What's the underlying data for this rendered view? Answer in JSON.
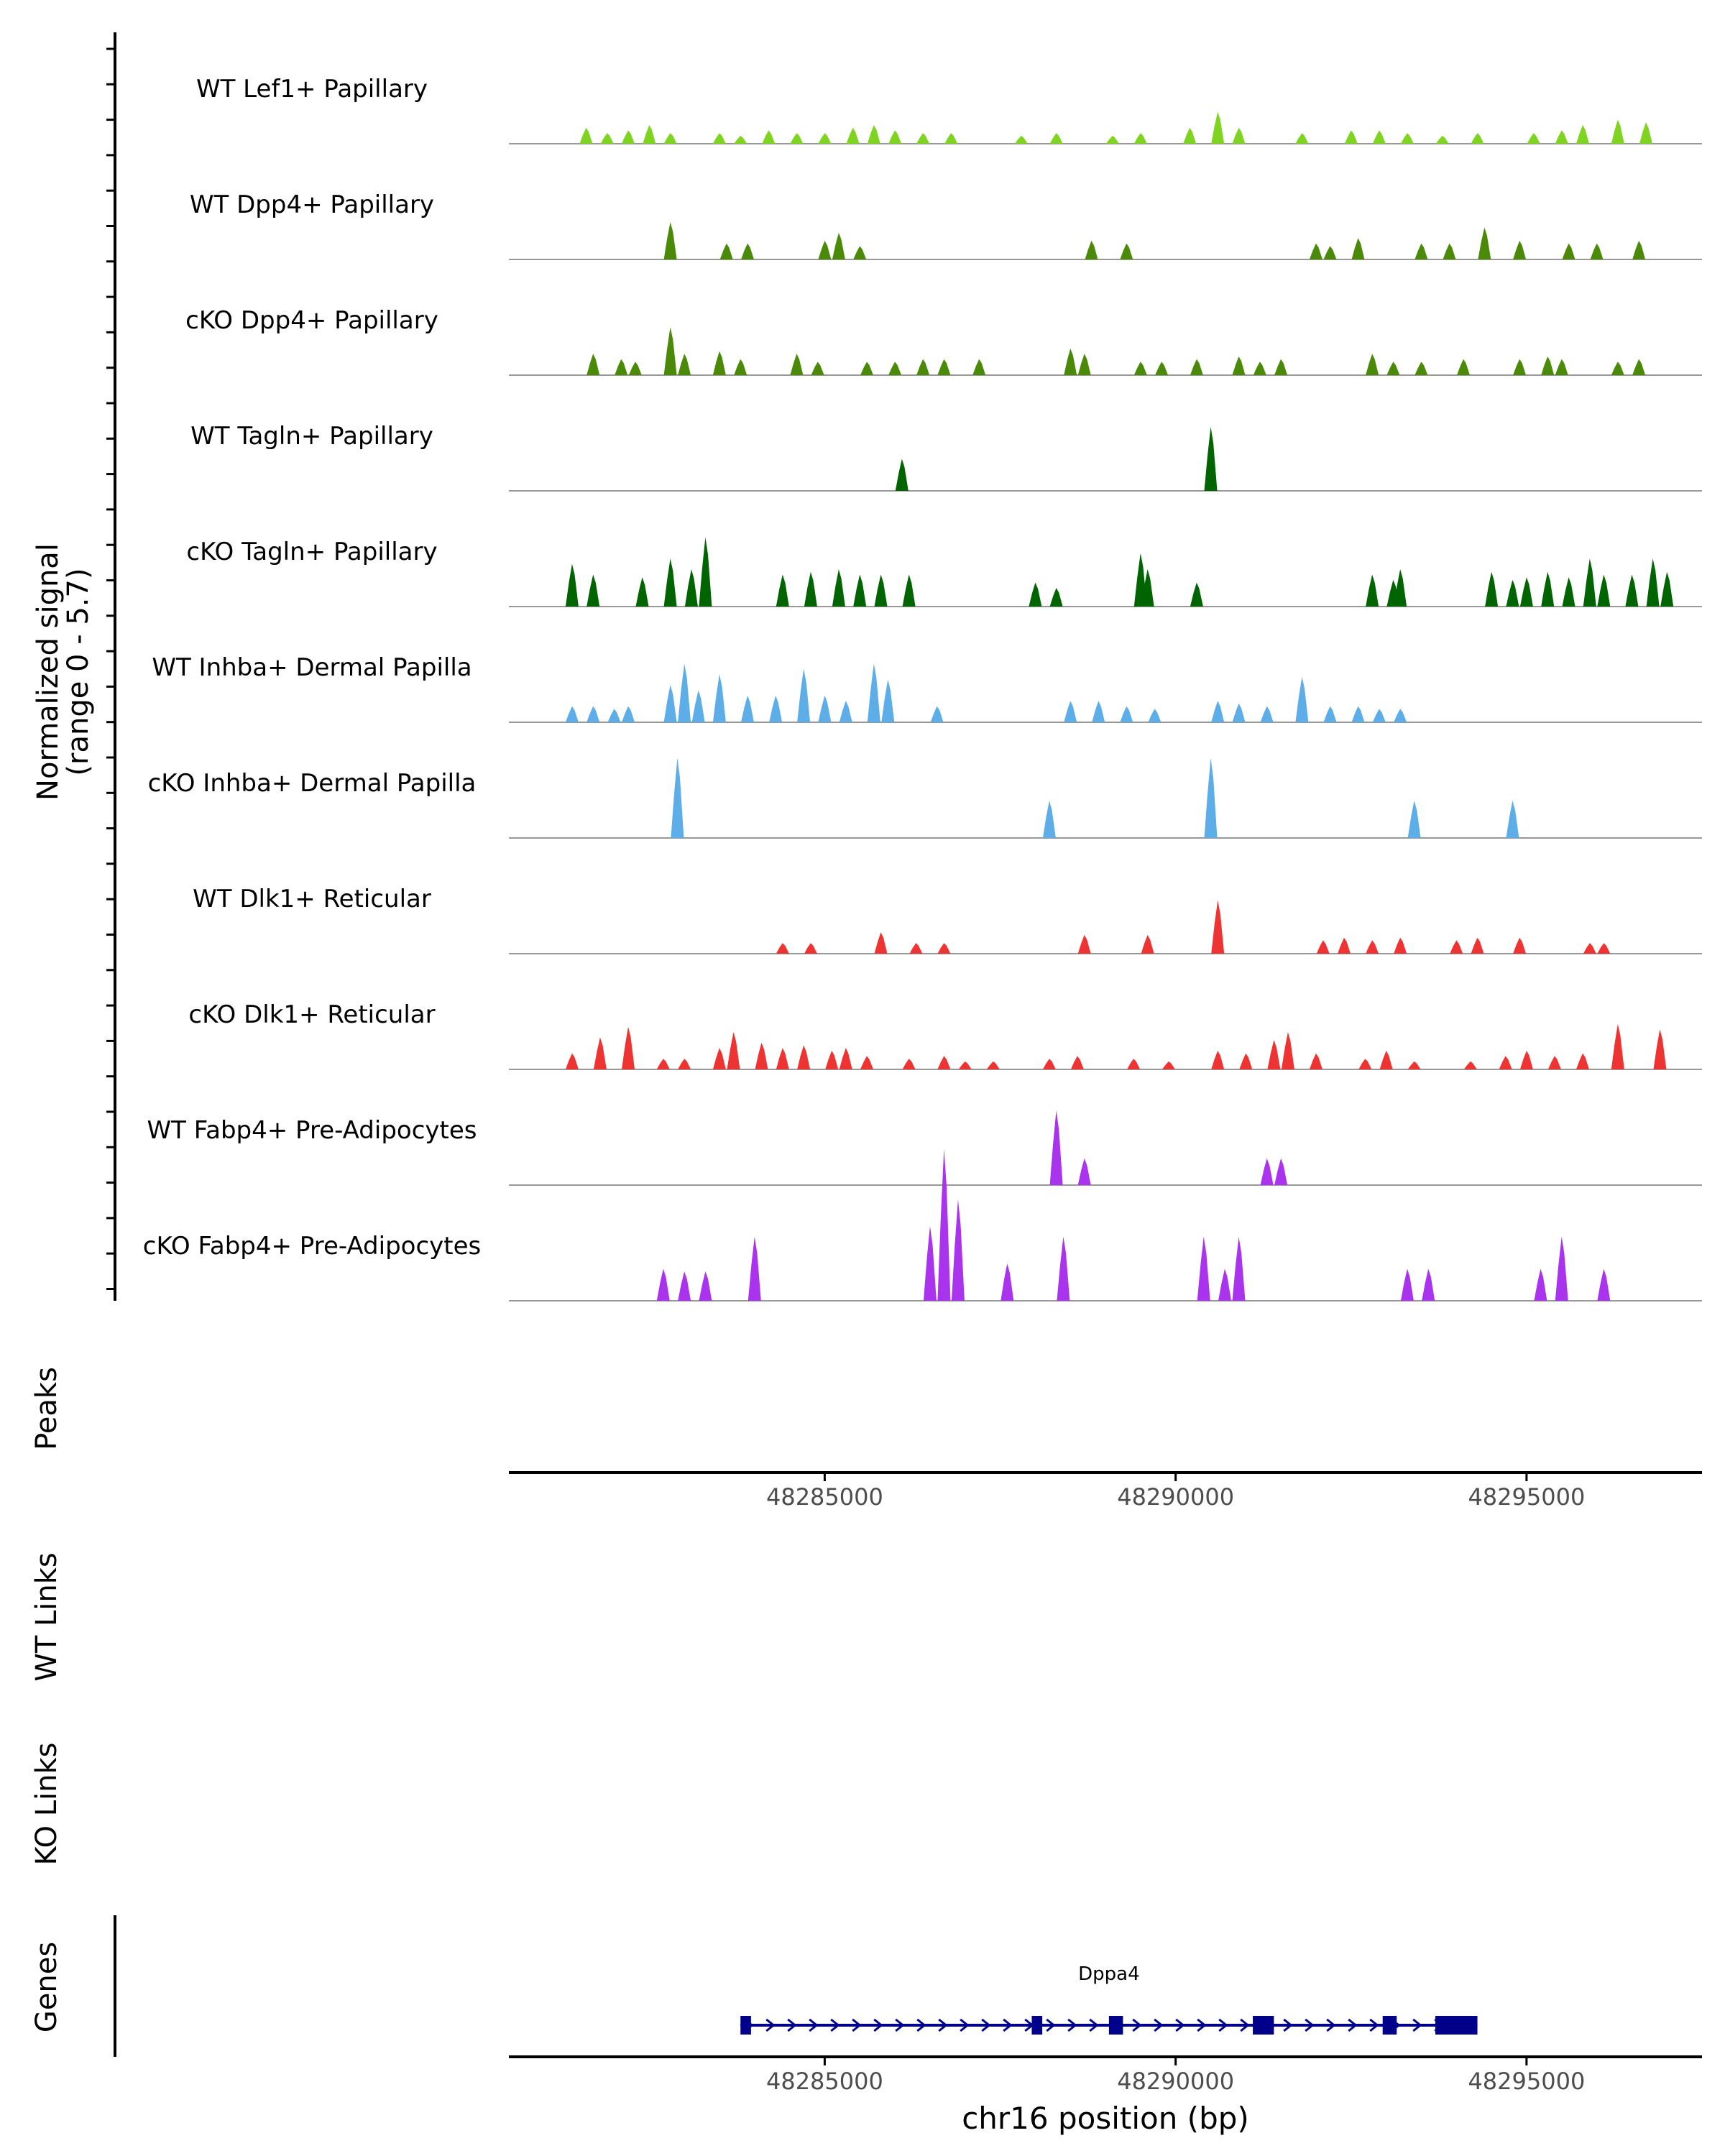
{
  "chart_data": {
    "type": "area",
    "title": "",
    "chromosome": "chr16",
    "xlabel": "chr16 position (bp)",
    "ylabel_line1": "Normalized signal",
    "ylabel_line2": "(range 0 - 5.7)",
    "ylim": [
      0,
      5.7
    ],
    "xlim": [
      48280500,
      48297500
    ],
    "x_ticks": [
      48285000,
      48290000,
      48295000
    ],
    "x_tick_labels": [
      "48285000",
      "48290000",
      "48295000"
    ],
    "bottom_x_tick_labels": [
      "48285000",
      "48290000",
      "48295000"
    ],
    "section_labels": {
      "peaks": "Peaks",
      "wt_links": "WT Links",
      "ko_links": "KO Links",
      "genes": "Genes"
    },
    "series": [
      {
        "name": "WT Lef1+ Papillary",
        "color": "#7FD321",
        "peaks": [
          [
            48281600,
            0.6
          ],
          [
            48281900,
            0.4
          ],
          [
            48282200,
            0.5
          ],
          [
            48282500,
            0.7
          ],
          [
            48282800,
            0.4
          ],
          [
            48283500,
            0.4
          ],
          [
            48283800,
            0.3
          ],
          [
            48284200,
            0.5
          ],
          [
            48284600,
            0.4
          ],
          [
            48285000,
            0.4
          ],
          [
            48285400,
            0.6
          ],
          [
            48285700,
            0.7
          ],
          [
            48286000,
            0.5
          ],
          [
            48286400,
            0.4
          ],
          [
            48286800,
            0.4
          ],
          [
            48287800,
            0.3
          ],
          [
            48288300,
            0.4
          ],
          [
            48289100,
            0.3
          ],
          [
            48289500,
            0.4
          ],
          [
            48290200,
            0.6
          ],
          [
            48290600,
            1.2
          ],
          [
            48290900,
            0.6
          ],
          [
            48291800,
            0.4
          ],
          [
            48292500,
            0.5
          ],
          [
            48292900,
            0.5
          ],
          [
            48293300,
            0.4
          ],
          [
            48293800,
            0.3
          ],
          [
            48294300,
            0.4
          ],
          [
            48295100,
            0.4
          ],
          [
            48295500,
            0.5
          ],
          [
            48295800,
            0.7
          ],
          [
            48296300,
            0.9
          ],
          [
            48296700,
            0.8
          ]
        ]
      },
      {
        "name": "WT Dpp4+ Papillary",
        "color": "#4B8A08",
        "peaks": [
          [
            48282800,
            1.4
          ],
          [
            48283600,
            0.6
          ],
          [
            48283900,
            0.6
          ],
          [
            48285000,
            0.7
          ],
          [
            48285200,
            1.0
          ],
          [
            48285500,
            0.5
          ],
          [
            48288800,
            0.7
          ],
          [
            48289300,
            0.6
          ],
          [
            48292000,
            0.6
          ],
          [
            48292200,
            0.5
          ],
          [
            48292600,
            0.8
          ],
          [
            48293500,
            0.6
          ],
          [
            48293900,
            0.6
          ],
          [
            48294400,
            1.2
          ],
          [
            48294900,
            0.7
          ],
          [
            48295600,
            0.6
          ],
          [
            48296000,
            0.6
          ],
          [
            48296600,
            0.7
          ]
        ]
      },
      {
        "name": "cKO Dpp4+ Papillary",
        "color": "#4B8A08",
        "peaks": [
          [
            48281700,
            0.8
          ],
          [
            48282100,
            0.6
          ],
          [
            48282300,
            0.5
          ],
          [
            48282800,
            1.8
          ],
          [
            48283000,
            0.8
          ],
          [
            48283500,
            0.9
          ],
          [
            48283800,
            0.6
          ],
          [
            48284600,
            0.8
          ],
          [
            48284900,
            0.5
          ],
          [
            48285600,
            0.5
          ],
          [
            48286000,
            0.5
          ],
          [
            48286400,
            0.6
          ],
          [
            48286700,
            0.6
          ],
          [
            48287200,
            0.6
          ],
          [
            48288500,
            1.0
          ],
          [
            48288700,
            0.8
          ],
          [
            48289500,
            0.5
          ],
          [
            48289800,
            0.5
          ],
          [
            48290300,
            0.6
          ],
          [
            48290900,
            0.7
          ],
          [
            48291200,
            0.5
          ],
          [
            48291500,
            0.6
          ],
          [
            48292800,
            0.8
          ],
          [
            48293100,
            0.5
          ],
          [
            48293500,
            0.5
          ],
          [
            48294100,
            0.6
          ],
          [
            48294900,
            0.6
          ],
          [
            48295300,
            0.7
          ],
          [
            48295500,
            0.6
          ],
          [
            48296300,
            0.5
          ],
          [
            48296600,
            0.6
          ]
        ]
      },
      {
        "name": "WT Tagln+ Papillary",
        "color": "#006400",
        "peaks": [
          [
            48286100,
            1.2
          ],
          [
            48290500,
            2.4
          ]
        ]
      },
      {
        "name": "cKO Tagln+ Papillary",
        "color": "#006400",
        "peaks": [
          [
            48281400,
            1.6
          ],
          [
            48281700,
            1.2
          ],
          [
            48282400,
            1.1
          ],
          [
            48282800,
            1.8
          ],
          [
            48283300,
            2.6
          ],
          [
            48283100,
            1.4
          ],
          [
            48284400,
            1.2
          ],
          [
            48284800,
            1.3
          ],
          [
            48285200,
            1.4
          ],
          [
            48285500,
            1.2
          ],
          [
            48285800,
            1.2
          ],
          [
            48286200,
            1.2
          ],
          [
            48288000,
            0.9
          ],
          [
            48288300,
            0.7
          ],
          [
            48289500,
            2.0
          ],
          [
            48289600,
            1.4
          ],
          [
            48290300,
            0.9
          ],
          [
            48292800,
            1.2
          ],
          [
            48293100,
            1.0
          ],
          [
            48293200,
            1.4
          ],
          [
            48294500,
            1.3
          ],
          [
            48294800,
            1.0
          ],
          [
            48295000,
            1.1
          ],
          [
            48295300,
            1.3
          ],
          [
            48295600,
            1.1
          ],
          [
            48295900,
            1.8
          ],
          [
            48296100,
            1.2
          ],
          [
            48296500,
            1.2
          ],
          [
            48296800,
            1.8
          ],
          [
            48297000,
            1.3
          ]
        ]
      },
      {
        "name": "WT Inhba+ Dermal Papilla",
        "color": "#5DADE8",
        "peaks": [
          [
            48281400,
            0.6
          ],
          [
            48281700,
            0.6
          ],
          [
            48282000,
            0.5
          ],
          [
            48282200,
            0.6
          ],
          [
            48282800,
            1.4
          ],
          [
            48283000,
            2.2
          ],
          [
            48283200,
            1.2
          ],
          [
            48283500,
            1.8
          ],
          [
            48283900,
            1.0
          ],
          [
            48284300,
            1.0
          ],
          [
            48284700,
            2.0
          ],
          [
            48285000,
            1.0
          ],
          [
            48285300,
            0.8
          ],
          [
            48285700,
            2.2
          ],
          [
            48285900,
            1.6
          ],
          [
            48286600,
            0.6
          ],
          [
            48288500,
            0.8
          ],
          [
            48288900,
            0.8
          ],
          [
            48289300,
            0.6
          ],
          [
            48289700,
            0.5
          ],
          [
            48290600,
            0.8
          ],
          [
            48290900,
            0.7
          ],
          [
            48291300,
            0.6
          ],
          [
            48291800,
            1.7
          ],
          [
            48292200,
            0.6
          ],
          [
            48292600,
            0.6
          ],
          [
            48292900,
            0.5
          ],
          [
            48293200,
            0.5
          ]
        ]
      },
      {
        "name": "cKO Inhba+ Dermal Papilla",
        "color": "#5DADE8",
        "peaks": [
          [
            48282900,
            3.0
          ],
          [
            48288200,
            1.4
          ],
          [
            48290500,
            3.0
          ],
          [
            48293400,
            1.4
          ],
          [
            48294800,
            1.4
          ]
        ]
      },
      {
        "name": "WT Dlk1+ Reticular",
        "color": "#EE3333",
        "peaks": [
          [
            48284400,
            0.4
          ],
          [
            48284800,
            0.4
          ],
          [
            48285800,
            0.8
          ],
          [
            48286300,
            0.4
          ],
          [
            48286700,
            0.4
          ],
          [
            48288700,
            0.7
          ],
          [
            48289600,
            0.7
          ],
          [
            48290600,
            2.0
          ],
          [
            48292100,
            0.5
          ],
          [
            48292400,
            0.6
          ],
          [
            48292800,
            0.5
          ],
          [
            48293200,
            0.6
          ],
          [
            48294000,
            0.5
          ],
          [
            48294300,
            0.6
          ],
          [
            48294900,
            0.6
          ],
          [
            48295900,
            0.4
          ],
          [
            48296100,
            0.4
          ]
        ]
      },
      {
        "name": "cKO Dlk1+ Reticular",
        "color": "#EE3333",
        "peaks": [
          [
            48281400,
            0.6
          ],
          [
            48281800,
            1.2
          ],
          [
            48282200,
            1.6
          ],
          [
            48282700,
            0.4
          ],
          [
            48283000,
            0.4
          ],
          [
            48283500,
            0.8
          ],
          [
            48283700,
            1.4
          ],
          [
            48284100,
            1.0
          ],
          [
            48284400,
            0.8
          ],
          [
            48284700,
            0.9
          ],
          [
            48285100,
            0.7
          ],
          [
            48285300,
            0.8
          ],
          [
            48285600,
            0.5
          ],
          [
            48286200,
            0.4
          ],
          [
            48286700,
            0.5
          ],
          [
            48287000,
            0.3
          ],
          [
            48287400,
            0.3
          ],
          [
            48288200,
            0.4
          ],
          [
            48288600,
            0.5
          ],
          [
            48289400,
            0.4
          ],
          [
            48289900,
            0.3
          ],
          [
            48290600,
            0.7
          ],
          [
            48291000,
            0.6
          ],
          [
            48291400,
            1.1
          ],
          [
            48291600,
            1.4
          ],
          [
            48292000,
            0.6
          ],
          [
            48292700,
            0.4
          ],
          [
            48293000,
            0.7
          ],
          [
            48293400,
            0.3
          ],
          [
            48294200,
            0.3
          ],
          [
            48294700,
            0.5
          ],
          [
            48295000,
            0.7
          ],
          [
            48295400,
            0.5
          ],
          [
            48295800,
            0.6
          ],
          [
            48296300,
            1.7
          ],
          [
            48296900,
            1.5
          ]
        ]
      },
      {
        "name": "WT Fabp4+ Pre-Adipocytes",
        "color": "#AA33EE",
        "peaks": [
          [
            48288300,
            2.8
          ],
          [
            48288700,
            1.0
          ],
          [
            48291300,
            1.0
          ],
          [
            48291500,
            1.0
          ]
        ]
      },
      {
        "name": "cKO Fabp4+ Pre-Adipocytes",
        "color": "#AA33EE",
        "peaks": [
          [
            48282700,
            1.2
          ],
          [
            48283000,
            1.1
          ],
          [
            48283300,
            1.1
          ],
          [
            48284000,
            2.4
          ],
          [
            48286500,
            2.8
          ],
          [
            48286700,
            5.7
          ],
          [
            48286900,
            3.8
          ],
          [
            48287600,
            1.4
          ],
          [
            48288400,
            2.4
          ],
          [
            48290400,
            2.4
          ],
          [
            48290700,
            1.2
          ],
          [
            48290900,
            2.4
          ],
          [
            48293300,
            1.2
          ],
          [
            48293600,
            1.2
          ],
          [
            48295200,
            1.2
          ],
          [
            48295500,
            2.4
          ],
          [
            48296100,
            1.2
          ]
        ]
      }
    ],
    "gene": {
      "name": "Dppa4",
      "color": "#00008B",
      "strand": "+",
      "start": 48283800,
      "end": 48294300,
      "exons": [
        [
          48283800,
          48283950
        ],
        [
          48287950,
          48288100
        ],
        [
          48289050,
          48289250
        ],
        [
          48291100,
          48291400
        ],
        [
          48292950,
          48293150
        ],
        [
          48293700,
          48294300
        ]
      ]
    }
  }
}
